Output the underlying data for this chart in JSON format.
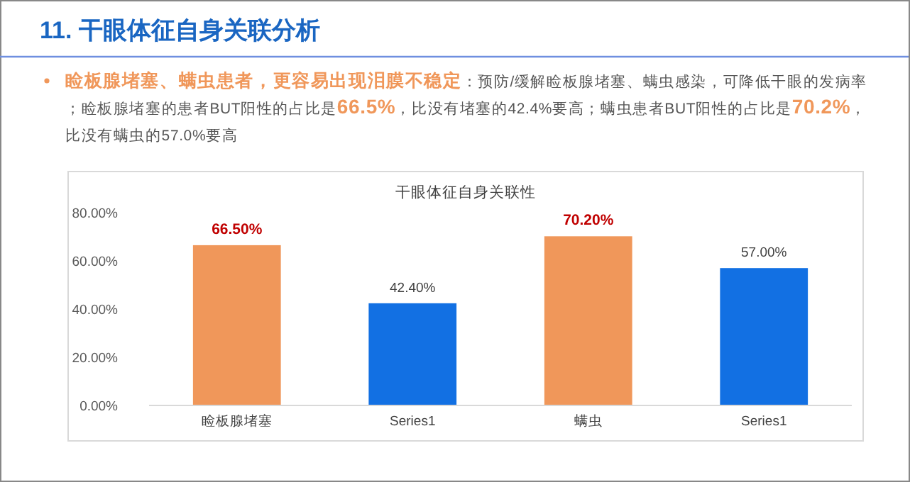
{
  "chart_data": {
    "type": "bar",
    "title": "干眼体征自身关联性",
    "annotations": [
      "11. 干眼体征自身关联分析",
      "**睑板腺堵塞、螨虫患者，更容易出现泪膜不稳定**：预防/缓解睑板腺堵塞、螨虫感染，可降低干眼的发病率；睑板腺堵塞的患者BUT阳性的占比是**66.5%**，比没有堵塞的42.4%要高；螨虫患者BUT阳性的占比是**70.2%**，比没有螨虫的57.0%要高"
    ],
    "categories": [
      "睑板腺堵塞",
      "Series1",
      "螨虫",
      "Series1"
    ],
    "values": [
      66.5,
      42.4,
      70.2,
      57.0
    ],
    "colors": [
      "#f0975a",
      "#1270e3",
      "#f0975a",
      "#1270e3"
    ],
    "value_labels": [
      "66.50%",
      "42.40%",
      "70.20%",
      "57.00%"
    ],
    "ylim": [
      0,
      80
    ],
    "yticks": [
      {
        "value": 0,
        "label": "0.00%"
      },
      {
        "value": 20,
        "label": "20.00%"
      },
      {
        "value": 40,
        "label": "40.00%"
      },
      {
        "value": 60,
        "label": "60.00%"
      },
      {
        "value": 80,
        "label": "80.00%"
      }
    ],
    "grid": false
  }
}
